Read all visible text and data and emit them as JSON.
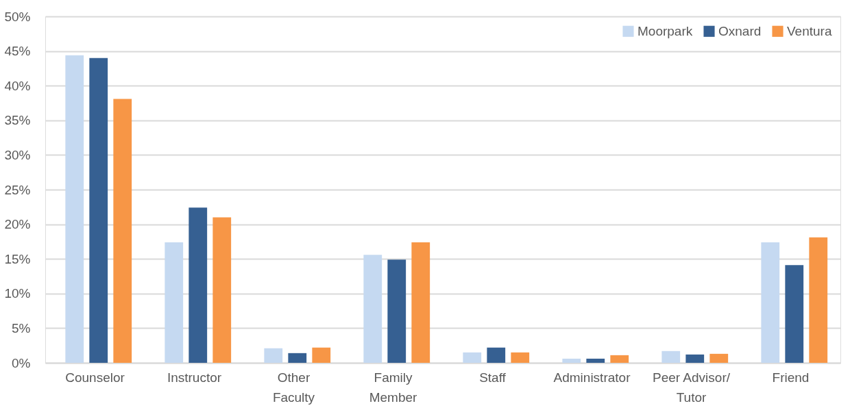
{
  "chart_data": {
    "type": "bar",
    "categories": [
      "Counselor",
      "Instructor",
      "Other Faculty",
      "Family Member",
      "Staff",
      "Administrator",
      "Peer Advisor/ Tutor",
      "Friend"
    ],
    "series": [
      {
        "name": "Moorpark",
        "color": "#c5d9f1",
        "values": [
          44.4,
          17.4,
          2.1,
          15.6,
          1.5,
          0.6,
          1.7,
          17.4
        ]
      },
      {
        "name": "Oxnard",
        "color": "#366092",
        "values": [
          44.0,
          22.4,
          1.4,
          14.9,
          2.2,
          0.6,
          1.2,
          14.1
        ]
      },
      {
        "name": "Ventura",
        "color": "#f79646",
        "values": [
          38.1,
          21.0,
          2.2,
          17.4,
          1.5,
          1.1,
          1.3,
          18.1
        ]
      }
    ],
    "ylim": [
      0,
      50
    ],
    "yticks": [
      {
        "value": 0,
        "label": "0%"
      },
      {
        "value": 5,
        "label": "5%"
      },
      {
        "value": 10,
        "label": "10%"
      },
      {
        "value": 15,
        "label": "15%"
      },
      {
        "value": 20,
        "label": "20%"
      },
      {
        "value": 25,
        "label": "25%"
      },
      {
        "value": 30,
        "label": "30%"
      },
      {
        "value": 35,
        "label": "35%"
      },
      {
        "value": 40,
        "label": "40%"
      },
      {
        "value": 45,
        "label": "45%"
      },
      {
        "value": 50,
        "label": "50%"
      }
    ],
    "grid": "y",
    "legend": "top right"
  }
}
